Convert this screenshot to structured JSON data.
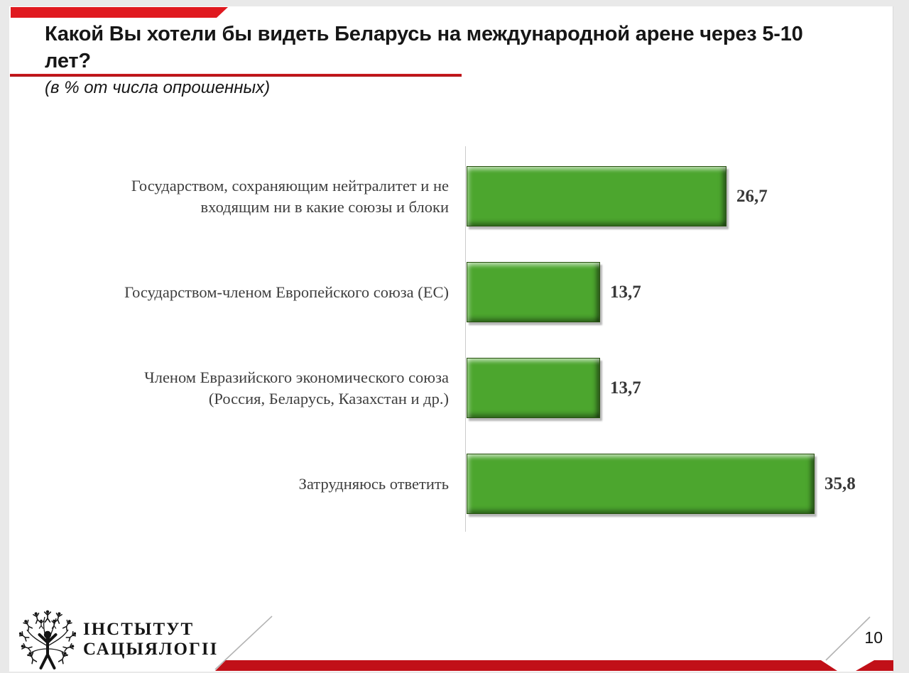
{
  "slide": {
    "title": "Какой Вы хотели бы видеть Беларусь на международной арене через 5-10\nлет?",
    "subtitle": "(в % от числа опрошенных)",
    "page_number": "10"
  },
  "chart_data": {
    "type": "bar",
    "orientation": "horizontal",
    "title": "Какой Вы хотели бы видеть Беларусь на международной арене через 5-10 лет?",
    "subtitle": "(в % от числа опрошенных)",
    "categories": [
      "Государством, сохраняющим нейтралитет и не входящим ни в какие союзы и блоки",
      "Государством-членом Европейского союза (ЕС)",
      "Членом Евразийского экономического союза (Россия, Беларусь, Казахстан и др.)",
      "Затрудняюсь ответить"
    ],
    "category_display": [
      "Государством, сохраняющим нейтралитет и не\nвходящим ни в какие союзы и блоки",
      "Государством-членом Европейского союза (ЕС)",
      "Членом Евразийского экономического союза\n(Россия, Беларусь, Казахстан и др.)",
      "Затрудняюсь ответить"
    ],
    "values": [
      26.7,
      13.7,
      13.7,
      35.8
    ],
    "value_labels": [
      "26,7",
      "13,7",
      "13,7",
      "35,8"
    ],
    "xlim": [
      0,
      40
    ],
    "gridlines": false,
    "legend": false,
    "bar_color": "#4CA62E"
  },
  "footer": {
    "logo_text": "ІНСТЫТУТ\nСАЦЫЯЛОГІІ",
    "logo_icon": "tree-of-people-icon"
  },
  "colors": {
    "banner_red": "#E0191F",
    "underline_red": "#C9191E",
    "band_red": "#C11018",
    "bar_green": "#4CA62E",
    "axis_gray": "#CBCBCB",
    "text_dark": "#161616",
    "label_gray": "#3E3E3E"
  }
}
